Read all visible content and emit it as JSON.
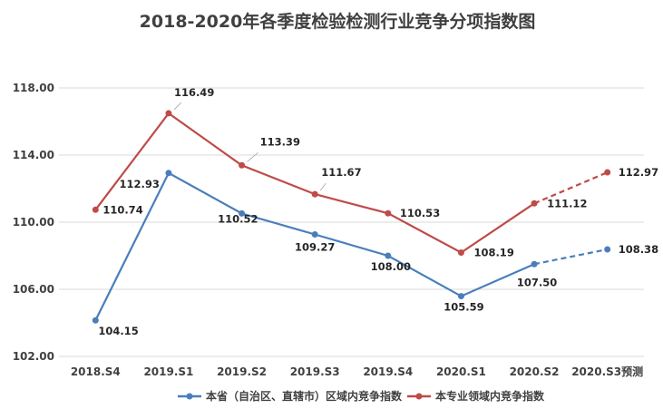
{
  "chart_data": {
    "type": "line",
    "title": "2018-2020年各季度检验检测行业竞争分项指数图",
    "categories": [
      "2018.S4",
      "2019.S1",
      "2019.S2",
      "2019.S3",
      "2019.S4",
      "2020.S1",
      "2020.S2",
      "2020.S3预测"
    ],
    "ylim": [
      102,
      118
    ],
    "yticks": [
      "102.00",
      "106.00",
      "110.00",
      "114.00",
      "118.00"
    ],
    "ytick_values": [
      102,
      106,
      110,
      114,
      118
    ],
    "grid": true,
    "legend_position": "bottom",
    "forecast_from_index": 6,
    "series": [
      {
        "name": "本省（自治区、直辖市）区域内竞争指数",
        "color": "#4a7ebb",
        "values": [
          104.15,
          112.93,
          110.52,
          109.27,
          108.0,
          105.59,
          107.5,
          108.38
        ],
        "labels": [
          "104.15",
          "112.93",
          "110.52",
          "109.27",
          "108.00",
          "105.59",
          "107.50",
          "108.38"
        ]
      },
      {
        "name": "本专业领域内竞争指数",
        "color": "#be4b48",
        "values": [
          110.74,
          116.49,
          113.39,
          111.67,
          110.53,
          108.19,
          111.12,
          112.97
        ],
        "labels": [
          "110.74",
          "116.49",
          "113.39",
          "111.67",
          "110.53",
          "108.19",
          "111.12",
          "112.97"
        ]
      }
    ]
  }
}
